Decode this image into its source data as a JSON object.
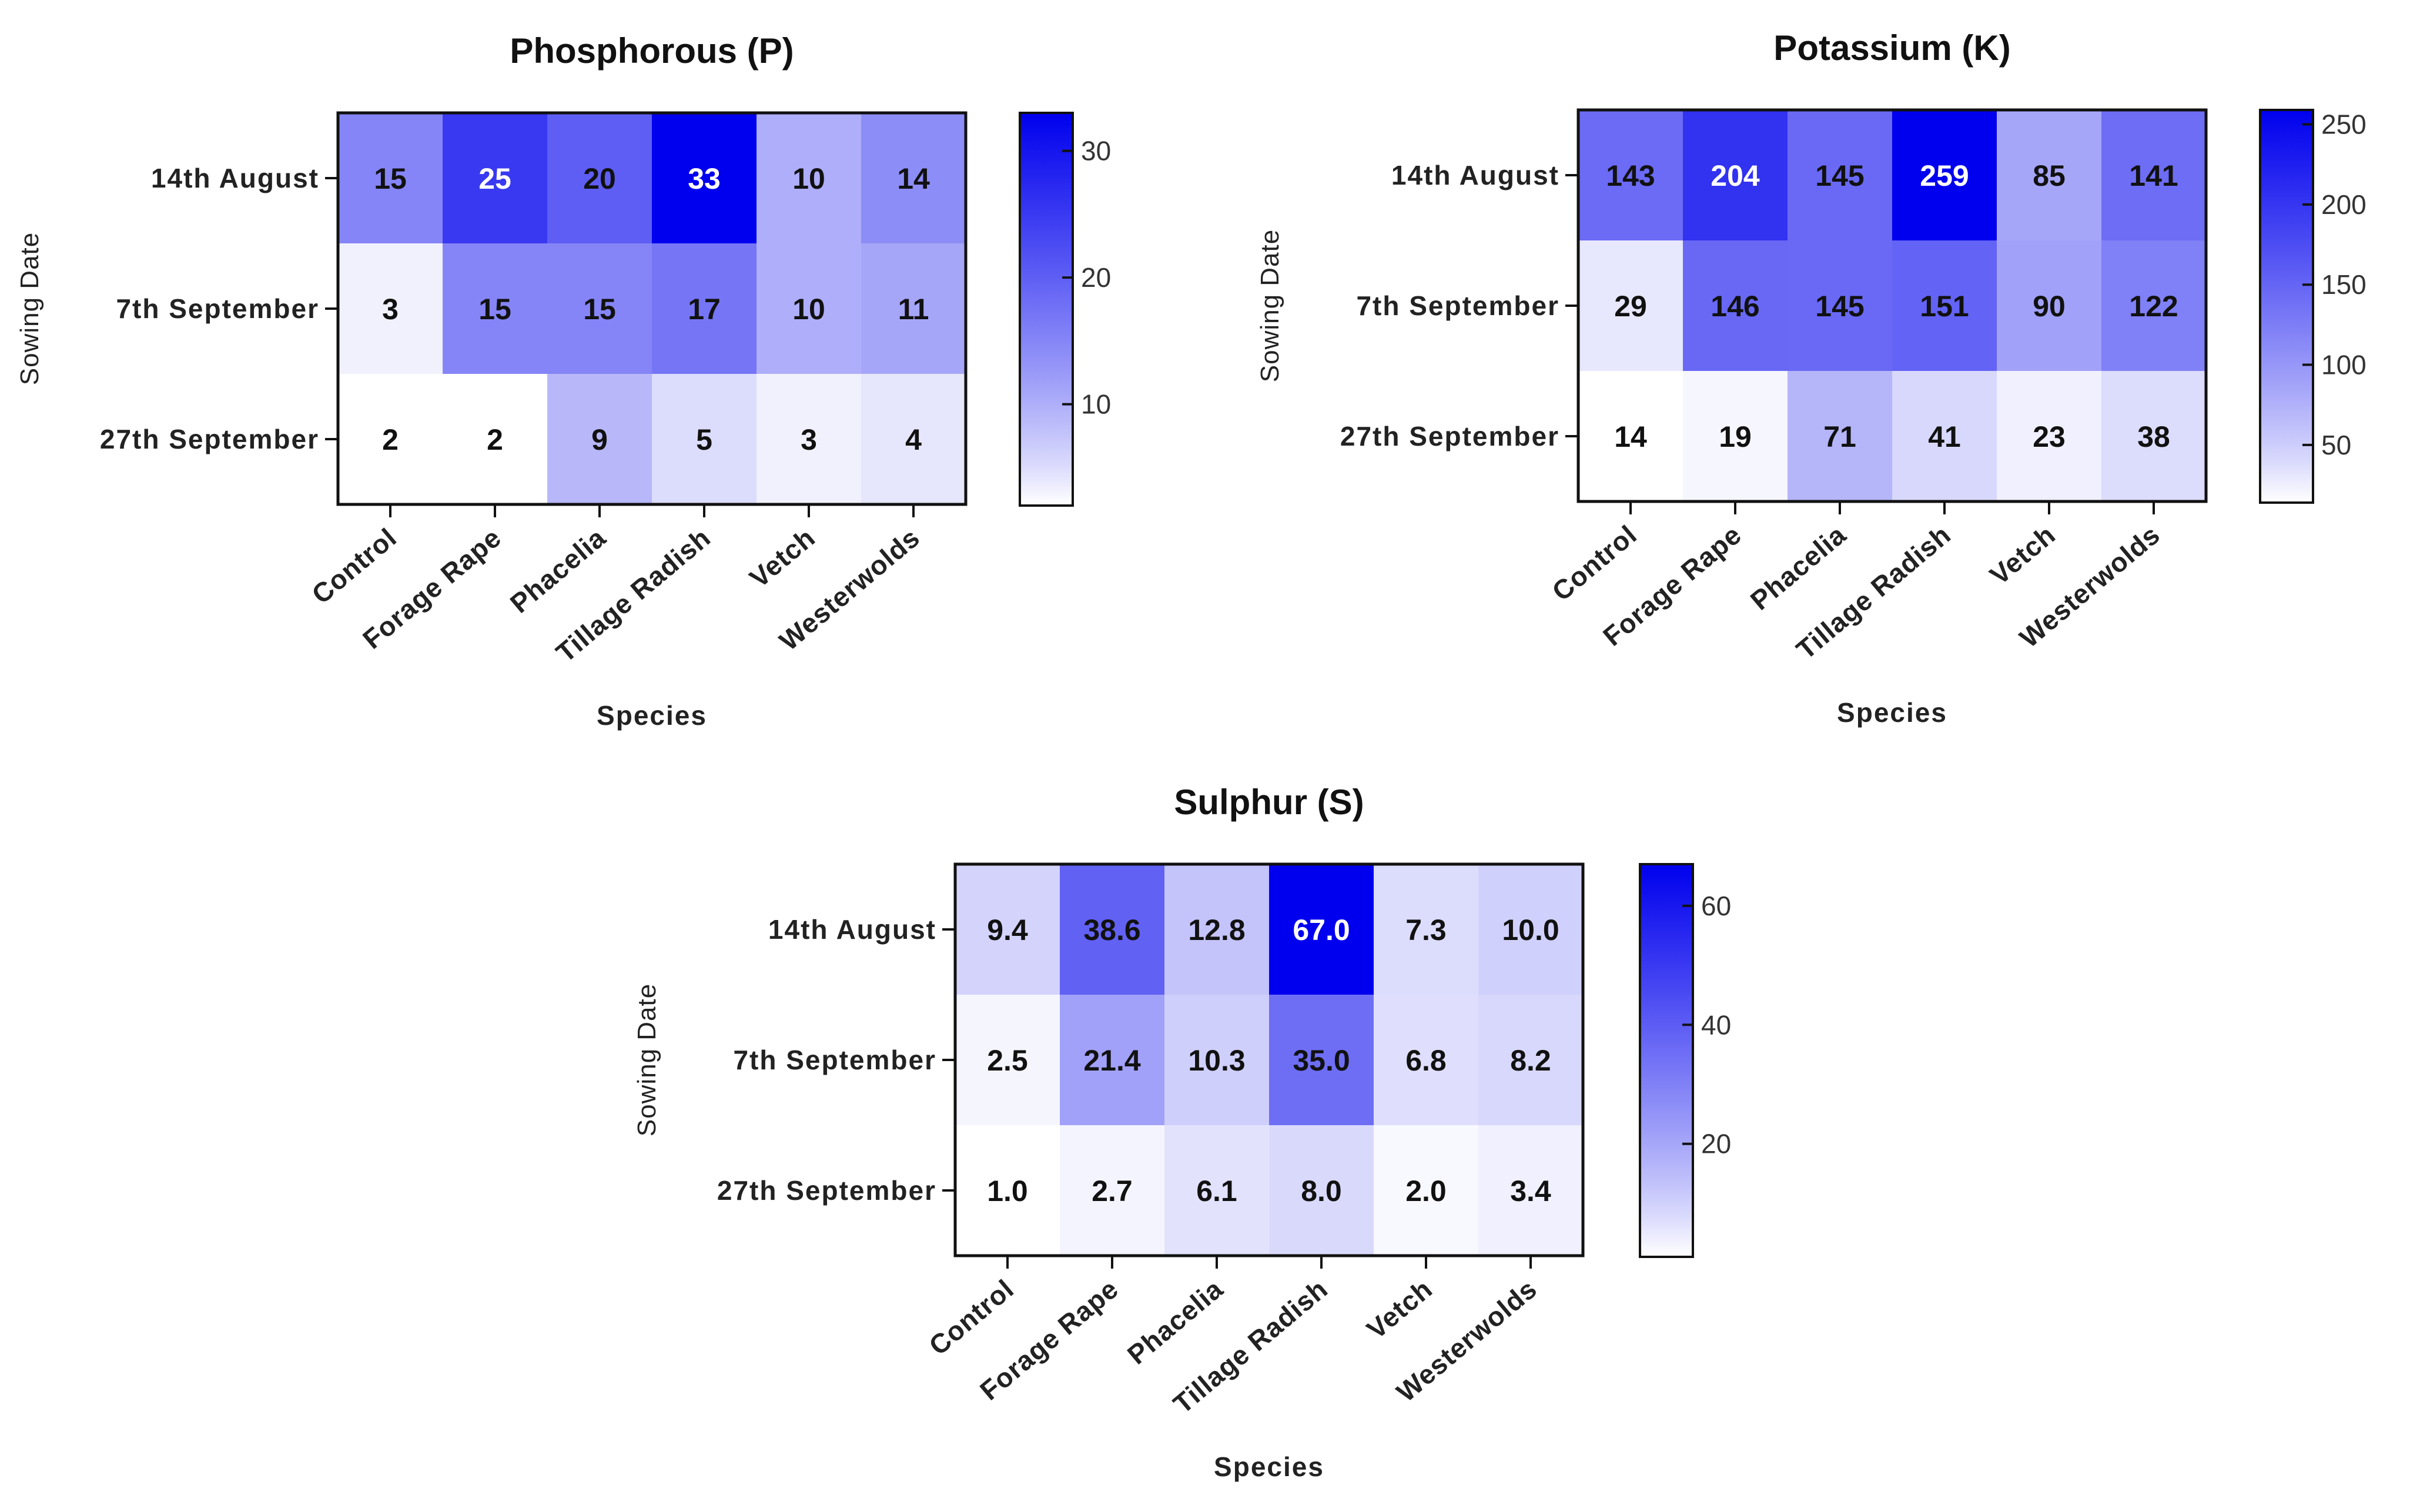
{
  "chart_data": [
    {
      "type": "heatmap",
      "title": "Phosphorous (P)",
      "xlabel": "Species",
      "ylabel": "Sowing Date",
      "categories": [
        "Control",
        "Forage Rape",
        "Phacelia",
        "Tillage Radish",
        "Vetch",
        "Westerwolds"
      ],
      "rows": [
        "14th August",
        "7th September",
        "27th September"
      ],
      "values": [
        [
          "15",
          "25",
          "20",
          "33",
          "10",
          "14"
        ],
        [
          "3",
          "15",
          "15",
          "17",
          "10",
          "11"
        ],
        [
          "2",
          "2",
          "9",
          "5",
          "3",
          "4"
        ]
      ],
      "colorbar": {
        "range": [
          2,
          33
        ],
        "ticks": [
          "10",
          "20",
          "30"
        ],
        "color_low": "#ffffff",
        "color_high": "#0000ee"
      }
    },
    {
      "type": "heatmap",
      "title": "Potassium (K)",
      "xlabel": "Species",
      "ylabel": "Sowing Date",
      "categories": [
        "Control",
        "Forage Rape",
        "Phacelia",
        "Tillage Radish",
        "Vetch",
        "Westerwolds"
      ],
      "rows": [
        "14th August",
        "7th September",
        "27th September"
      ],
      "values": [
        [
          "143",
          "204",
          "145",
          "259",
          "85",
          "141"
        ],
        [
          "29",
          "146",
          "145",
          "151",
          "90",
          "122"
        ],
        [
          "14",
          "19",
          "71",
          "41",
          "23",
          "38"
        ]
      ],
      "colorbar": {
        "range": [
          14,
          259
        ],
        "ticks": [
          "50",
          "100",
          "150",
          "200",
          "250"
        ],
        "color_low": "#ffffff",
        "color_high": "#0000ee"
      }
    },
    {
      "type": "heatmap",
      "title": "Sulphur (S)",
      "xlabel": "Species",
      "ylabel": "Sowing Date",
      "categories": [
        "Control",
        "Forage Rape",
        "Phacelia",
        "Tillage Radish",
        "Vetch",
        "Westerwolds"
      ],
      "rows": [
        "14th August",
        "7th September",
        "27th September"
      ],
      "values": [
        [
          "9.4",
          "38.6",
          "12.8",
          "67.0",
          "7.3",
          "10.0"
        ],
        [
          "2.5",
          "21.4",
          "10.3",
          "35.0",
          "6.8",
          "8.2"
        ],
        [
          "1.0",
          "2.7",
          "6.1",
          "8.0",
          "2.0",
          "3.4"
        ]
      ],
      "colorbar": {
        "range": [
          1,
          67
        ],
        "ticks": [
          "20",
          "40",
          "60"
        ],
        "color_low": "#ffffff",
        "color_high": "#0000ee"
      }
    }
  ]
}
